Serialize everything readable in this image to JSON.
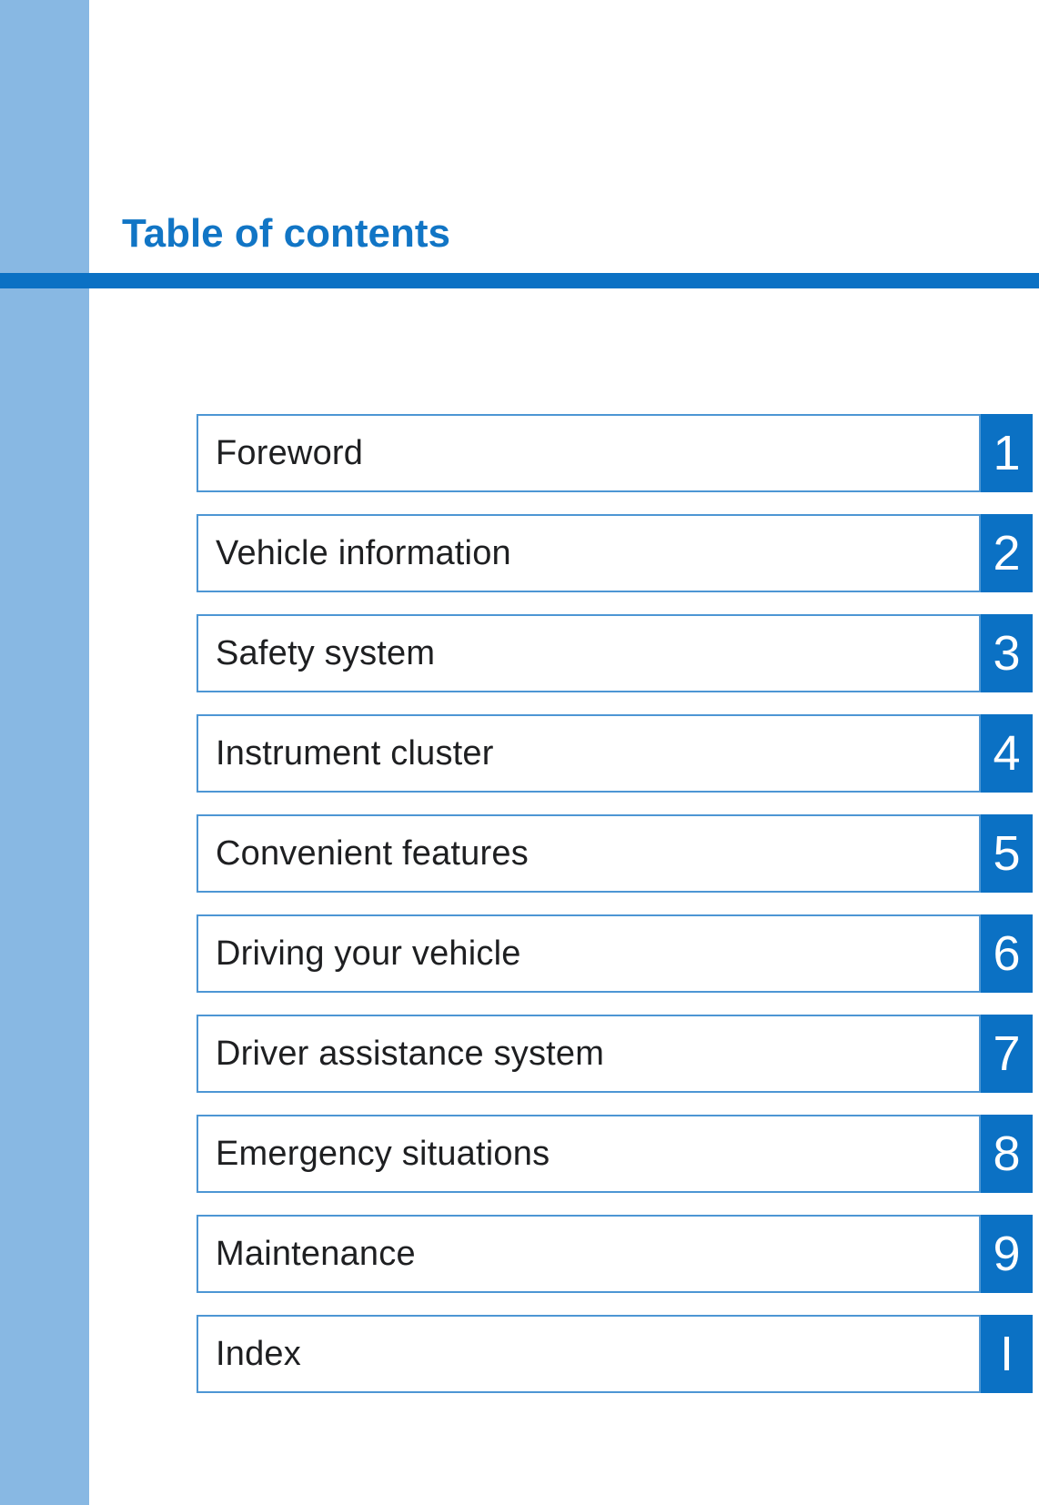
{
  "page": {
    "title": "Table of contents"
  },
  "colors": {
    "sidebar_accent": "#88b8e3",
    "primary_blue": "#0b71c4",
    "title_text_blue": "#1175c5",
    "row_border_blue": "#4d96d4",
    "label_text": "#1e1f21",
    "number_text": "#ffffff",
    "background": "#ffffff"
  },
  "toc": {
    "items": [
      {
        "label": "Foreword",
        "number": "1"
      },
      {
        "label": "Vehicle information",
        "number": "2"
      },
      {
        "label": "Safety system",
        "number": "3"
      },
      {
        "label": "Instrument cluster",
        "number": "4"
      },
      {
        "label": "Convenient features",
        "number": "5"
      },
      {
        "label": "Driving your vehicle",
        "number": "6"
      },
      {
        "label": "Driver assistance system",
        "number": "7"
      },
      {
        "label": "Emergency situations",
        "number": "8"
      },
      {
        "label": "Maintenance",
        "number": "9"
      },
      {
        "label": "Index",
        "number": "I"
      }
    ]
  }
}
